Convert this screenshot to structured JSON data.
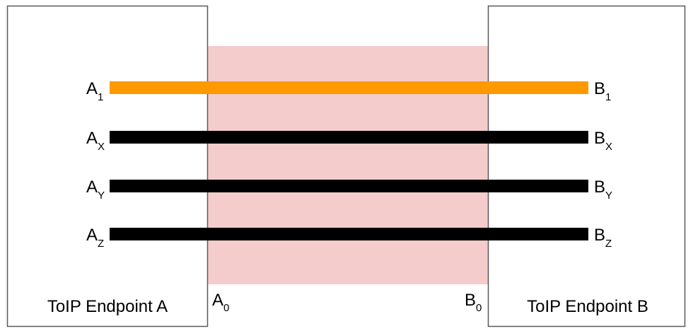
{
  "endpoints": [
    {
      "label": "ToIP Endpoint A"
    },
    {
      "label": "ToIP Endpoint B"
    }
  ],
  "origins": [
    {
      "base": "A",
      "sub": "0"
    },
    {
      "base": "B",
      "sub": "0"
    }
  ],
  "channels": [
    {
      "color": "#ff9900",
      "a": {
        "base": "A",
        "sub": "1"
      },
      "b": {
        "base": "B",
        "sub": "1"
      }
    },
    {
      "color": "#000000",
      "a": {
        "base": "A",
        "sub": "X"
      },
      "b": {
        "base": "B",
        "sub": "X"
      }
    },
    {
      "color": "#000000",
      "a": {
        "base": "A",
        "sub": "Y"
      },
      "b": {
        "base": "B",
        "sub": "Y"
      }
    },
    {
      "color": "#000000",
      "a": {
        "base": "A",
        "sub": "Z"
      },
      "b": {
        "base": "B",
        "sub": "Z"
      }
    }
  ]
}
